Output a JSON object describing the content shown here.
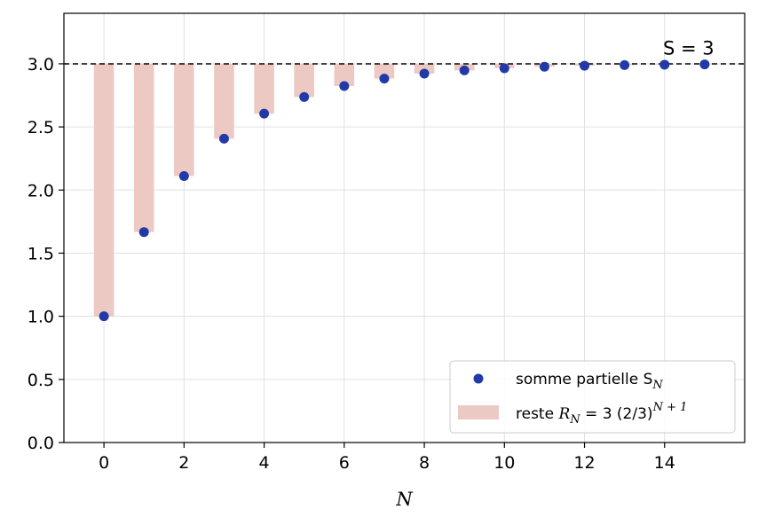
{
  "chart_data": {
    "type": "bar+scatter",
    "xlabel": "N",
    "ylabel": "",
    "xlim": [
      -1,
      16
    ],
    "ylim": [
      0,
      3.4
    ],
    "xticks": [
      0,
      2,
      4,
      6,
      8,
      10,
      12,
      14
    ],
    "yticks": [
      0.0,
      0.5,
      1.0,
      1.5,
      2.0,
      2.5,
      3.0
    ],
    "xtick_labels": [
      "0",
      "2",
      "4",
      "6",
      "8",
      "10",
      "12",
      "14"
    ],
    "ytick_labels": [
      "0.0",
      "0.5",
      "1.0",
      "1.5",
      "2.0",
      "2.5",
      "3.0"
    ],
    "grid": true,
    "legend_position": "lower-right",
    "reference_line": {
      "y": 3.0,
      "style": "dashed",
      "color": "#000000"
    },
    "annotation": {
      "text": "S = 3",
      "x": 14.6,
      "y": 3.13
    },
    "series": [
      {
        "name": "somme partielle S_N",
        "type": "scatter",
        "color": "#2239a8",
        "x": [
          0,
          1,
          2,
          3,
          4,
          5,
          6,
          7,
          8,
          9,
          10,
          11,
          12,
          13,
          14,
          15
        ],
        "values": [
          1.0,
          1.667,
          2.111,
          2.407,
          2.605,
          2.737,
          2.824,
          2.883,
          2.922,
          2.948,
          2.965,
          2.977,
          2.985,
          2.99,
          2.993,
          2.995
        ]
      },
      {
        "name": "reste R_N = 3 (2/3)^(N+1)",
        "type": "bar",
        "color": "#edc9c4",
        "baseline": 3.0,
        "x": [
          0,
          1,
          2,
          3,
          4,
          5,
          6,
          7,
          8,
          9,
          10,
          11,
          12,
          13,
          14,
          15
        ],
        "values": [
          2.0,
          1.333,
          0.889,
          0.593,
          0.395,
          0.263,
          0.176,
          0.117,
          0.078,
          0.052,
          0.035,
          0.023,
          0.015,
          0.01,
          0.007,
          0.005
        ]
      }
    ]
  },
  "legend": {
    "scatter_label": "somme partielle S",
    "scatter_sub": "N",
    "bar_label_prefix": "reste ",
    "bar_label_R": "R",
    "bar_label_sub": "N",
    "bar_label_eq": " = 3 (2/3)",
    "bar_label_sup": "N + 1"
  },
  "annotation_text": "S = 3",
  "xlabel_text": "N"
}
